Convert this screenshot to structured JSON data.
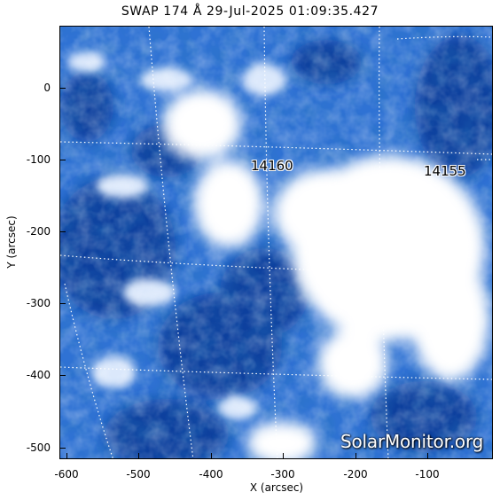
{
  "title": "SWAP 174 Å 29-Jul-2025 01:09:35.427",
  "x_axis": {
    "label": "X (arcsec)",
    "ticks": [
      -600,
      -500,
      -400,
      -300,
      -200,
      -100
    ]
  },
  "y_axis": {
    "label": "Y (arcsec)",
    "ticks": [
      0,
      -100,
      -200,
      -300,
      -400,
      -500
    ]
  },
  "regions": [
    {
      "id": "14160",
      "label": "14160"
    },
    {
      "id": "14155",
      "label": "14155"
    }
  ],
  "watermark": "SolarMonitor.org",
  "colors": {
    "background_blue": "#1f63cc",
    "dark_blue": "#0e3f9c",
    "bright": "#ffffff",
    "grid": "#ffffff"
  }
}
